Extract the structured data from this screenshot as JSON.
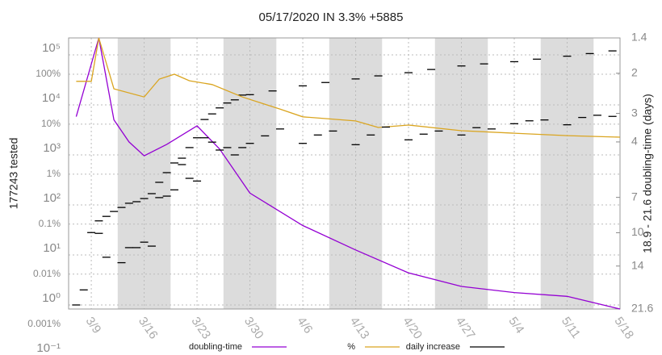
{
  "chart_data": {
    "type": "line",
    "title": "05/17/2020 IN 3.3% +5885",
    "ylabel": "177243 tested",
    "y2label": "18.9 - 21.6 doubling-time (days)",
    "xlim": [
      "3/6",
      "5/18"
    ],
    "xticks": [
      "3/9",
      "3/16",
      "3/23",
      "3/30",
      "4/6",
      "4/13",
      "4/20",
      "4/27",
      "5/4",
      "5/11",
      "5/18"
    ],
    "ylog": true,
    "ylim": [
      0.83,
      218000
    ],
    "yticks": [
      {
        "value": 0.1,
        "label": "10⁻¹"
      },
      {
        "value": 1,
        "label": "10⁰"
      },
      {
        "value": 10,
        "label": "10¹"
      },
      {
        "value": 100,
        "label": "10²"
      },
      {
        "value": 1000,
        "label": "10³"
      },
      {
        "value": 10000,
        "label": "10⁴"
      },
      {
        "value": 100000,
        "label": "10⁵"
      }
    ],
    "y3log": true,
    "y3lim": [
      0.002,
      532
    ],
    "y3ticks": [
      {
        "value": 0.001,
        "label": "0.001%"
      },
      {
        "value": 0.01,
        "label": "0.01%"
      },
      {
        "value": 0.1,
        "label": "0.1%"
      },
      {
        "value": 1,
        "label": "1%"
      },
      {
        "value": 10,
        "label": "10%"
      },
      {
        "value": 100,
        "label": "100%"
      }
    ],
    "y2log": true,
    "y2lim": [
      21.6,
      1.4
    ],
    "y2ticks": [
      1.4,
      2,
      3,
      4,
      7,
      10,
      14,
      21.6
    ],
    "grid": true,
    "cumulative": {
      "color": "#000000",
      "x": [
        "3/9",
        "3/10",
        "3/11",
        "3/12",
        "3/13",
        "3/14",
        "3/15",
        "3/16",
        "3/17",
        "3/18",
        "3/19",
        "3/20",
        "3/21",
        "3/22",
        "3/23",
        "3/24",
        "3/25",
        "3/26",
        "3/27",
        "3/28",
        "3/29",
        "3/30",
        "4/2",
        "4/6",
        "4/9",
        "4/13",
        "4/16",
        "4/20",
        "4/23",
        "4/27",
        "4/30",
        "5/4",
        "5/7",
        "5/11",
        "5/14",
        "5/17"
      ],
      "values": [
        28,
        48,
        59,
        74,
        89,
        108,
        116,
        134,
        168,
        283,
        442,
        690,
        860,
        1400,
        2200,
        5100,
        6600,
        8700,
        10900,
        12600,
        15700,
        16000,
        19000,
        24000,
        28000,
        33000,
        38000,
        44000,
        51000,
        60000,
        66000,
        73000,
        82000,
        94000,
        106000,
        120000
      ]
    },
    "series": [
      {
        "name": "doubling-time",
        "color": "#9400d3",
        "axis": "y2",
        "marker": "line",
        "x": [
          "3/7",
          "3/10",
          "3/12",
          "3/14",
          "3/16",
          "3/19",
          "3/23",
          "3/26",
          "3/30",
          "4/6",
          "4/13",
          "4/20",
          "4/27",
          "5/4",
          "5/11",
          "5/18"
        ],
        "values": [
          3.1,
          1.4,
          3.2,
          4.0,
          4.6,
          4.1,
          3.4,
          4.3,
          6.7,
          9.3,
          11.9,
          15.0,
          17.2,
          18.3,
          19.0,
          21.6
        ]
      },
      {
        "name": "%",
        "color": "#daa520",
        "axis": "y3",
        "marker": "line",
        "x": [
          "3/7",
          "3/9",
          "3/10",
          "3/12",
          "3/16",
          "3/18",
          "3/20",
          "3/22",
          "3/25",
          "3/29",
          "4/3",
          "4/6",
          "4/13",
          "4/16",
          "4/20",
          "4/27",
          "5/4",
          "5/11",
          "5/18"
        ],
        "values": [
          72,
          72,
          532,
          51,
          35,
          80,
          100,
          74,
          62,
          35,
          20,
          14,
          11.6,
          8.6,
          9.6,
          7.4,
          6.6,
          5.9,
          5.5
        ]
      },
      {
        "name": "daily increase",
        "color": "#000000",
        "marker": "dash",
        "x": [
          "3/7",
          "3/8",
          "3/10",
          "3/11",
          "3/13",
          "3/14",
          "3/15",
          "3/16",
          "3/17",
          "3/18",
          "3/19",
          "3/20",
          "3/21",
          "3/22",
          "3/23",
          "3/24",
          "3/25",
          "3/26",
          "3/27",
          "3/28",
          "3/29",
          "3/30",
          "4/1",
          "4/3",
          "4/6",
          "4/8",
          "4/10",
          "4/13",
          "4/15",
          "4/17",
          "4/20",
          "4/22",
          "4/24",
          "4/27",
          "4/29",
          "5/1",
          "5/4",
          "5/6",
          "5/8",
          "5/11",
          "5/13",
          "5/15",
          "5/17"
        ],
        "values": [
          1,
          2,
          27,
          9,
          7,
          14,
          14,
          18,
          15,
          140,
          150,
          200,
          640,
          340,
          300,
          2200,
          1800,
          1250,
          1400,
          1000,
          1400,
          1700,
          2400,
          3300,
          1700,
          2500,
          3000,
          1600,
          2500,
          3600,
          2000,
          2600,
          3000,
          2500,
          3500,
          3300,
          4200,
          4800,
          5000,
          4000,
          5600,
          6200,
          5885
        ]
      }
    ]
  }
}
